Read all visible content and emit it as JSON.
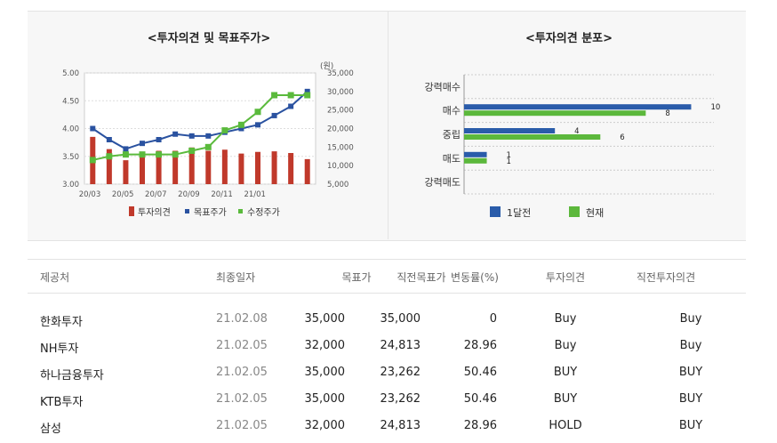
{
  "left_chart": {
    "title": "<투자의견 및 목표주가>",
    "unit_label": "(원)"
  },
  "right_chart": {
    "title": "<투자의견 분포>"
  },
  "chart_data": [
    {
      "type": "bar+line",
      "title": "<투자의견 및 목표주가>",
      "x_ticks": [
        "20/03",
        "20/05",
        "20/07",
        "20/09",
        "20/11",
        "21/01"
      ],
      "y_left_ticks": [
        "3.00",
        "3.50",
        "4.00",
        "4.50",
        "5.00"
      ],
      "y_left_range": [
        3.0,
        5.0
      ],
      "y_right_ticks": [
        "5,000",
        "10,000",
        "15,000",
        "20,000",
        "25,000",
        "30,000",
        "35,000"
      ],
      "y_right_range": [
        5000,
        35000
      ],
      "y_right_unit": "(원)",
      "legend": [
        "투자의견",
        "목표주가",
        "수정주가"
      ],
      "colors": {
        "opinion": "#c0392b",
        "target": "#2a52a0",
        "adjusted": "#5aba3c"
      },
      "opinion": [
        3.85,
        3.63,
        3.43,
        3.55,
        3.6,
        3.6,
        3.66,
        3.6,
        3.62,
        3.55,
        3.58,
        3.59,
        3.56,
        3.45
      ],
      "target_price": [
        20000,
        17000,
        14500,
        16000,
        17000,
        18500,
        18000,
        18000,
        19000,
        20000,
        21000,
        23500,
        26000,
        30000
      ],
      "adjusted_price": [
        11500,
        12500,
        13000,
        13000,
        13000,
        13000,
        14000,
        15000,
        19500,
        21000,
        24500,
        29000,
        29000,
        29000
      ],
      "grid": true,
      "legend_position": "bottom"
    },
    {
      "type": "bar",
      "orientation": "horizontal",
      "title": "<투자의견 분포>",
      "categories": [
        "강력매수",
        "매수",
        "중립",
        "매도",
        "강력매도"
      ],
      "series": [
        {
          "name": "1달전",
          "values": [
            0,
            10,
            4,
            1,
            0
          ],
          "color": "#2a5caa"
        },
        {
          "name": "현재",
          "values": [
            0,
            8,
            6,
            1,
            0
          ],
          "color": "#5cb83c"
        }
      ],
      "xlim": [
        0,
        11
      ],
      "grid": true,
      "legend_position": "bottom"
    }
  ],
  "table": {
    "headers": [
      "제공처",
      "최종일자",
      "목표가",
      "직전목표가",
      "변동률(%)",
      "투자의견",
      "직전투자의견"
    ],
    "rows": [
      [
        "한화투자",
        "21.02.08",
        "35,000",
        "35,000",
        "0",
        "Buy",
        "Buy"
      ],
      [
        "NH투자",
        "21.02.05",
        "32,000",
        "24,813",
        "28.96",
        "Buy",
        "Buy"
      ],
      [
        "하나금융투자",
        "21.02.05",
        "35,000",
        "23,262",
        "50.46",
        "BUY",
        "BUY"
      ],
      [
        "KTB투자",
        "21.02.05",
        "35,000",
        "23,262",
        "50.46",
        "BUY",
        "BUY"
      ],
      [
        "삼성",
        "21.02.05",
        "32,000",
        "24,813",
        "28.96",
        "HOLD",
        "BUY"
      ]
    ]
  }
}
